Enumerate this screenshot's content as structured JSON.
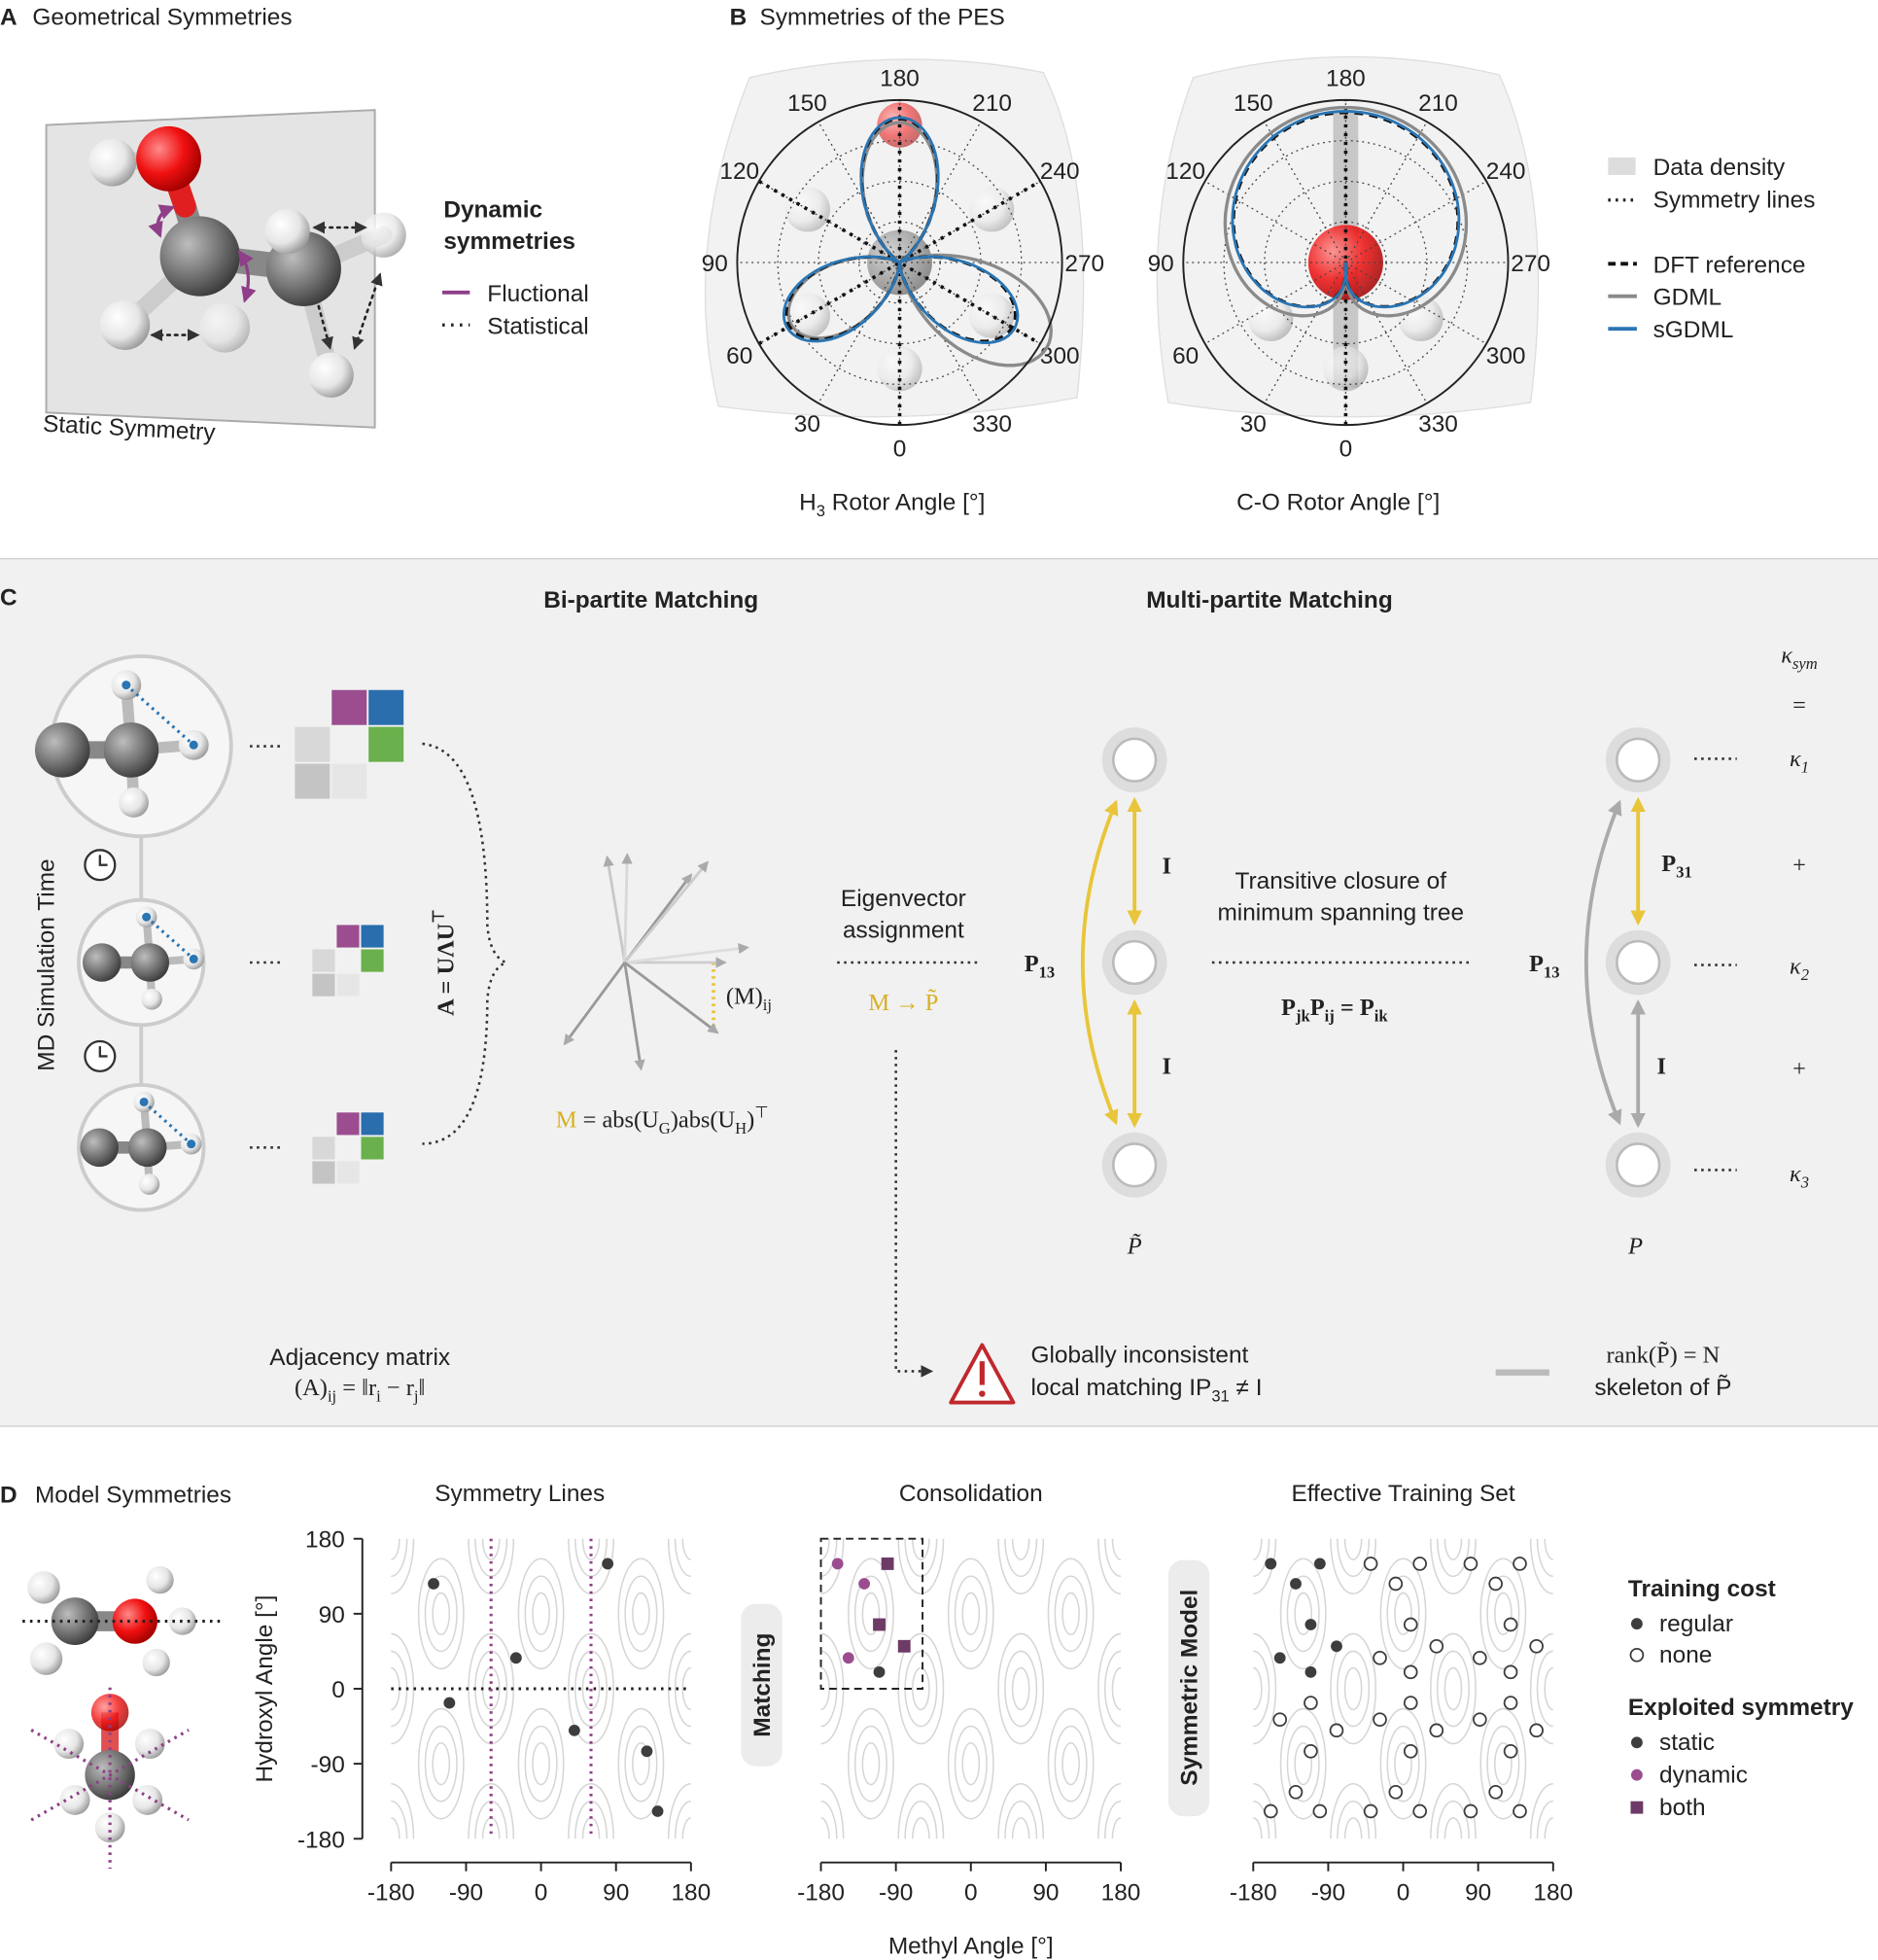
{
  "panel_a": {
    "label": "A",
    "title": "Geometrical Symmetries",
    "legend_title": [
      "Dynamic",
      "symmetries"
    ],
    "legend": [
      "Fluctional",
      "Statistical"
    ],
    "plane_label": "Static Symmetry"
  },
  "panel_b": {
    "label": "B",
    "title": "Symmetries of the PES",
    "angle_ticks": [
      0,
      30,
      60,
      90,
      120,
      150,
      180,
      210,
      240,
      270,
      300,
      330
    ],
    "plots": [
      {
        "xlabel": [
          "H",
          "3",
          " Rotor Angle [°]"
        ],
        "symmetry_angles": [
          0,
          60,
          120
        ]
      },
      {
        "xlabel": [
          "C-O Rotor Angle [°]"
        ],
        "symmetry_angles": [
          0
        ]
      }
    ],
    "legend_extra": [
      "Data density",
      "Symmetry lines"
    ],
    "series": [
      {
        "name": "DFT reference",
        "color": "#111111"
      },
      {
        "name": "GDML",
        "color": "#8a8a8a"
      },
      {
        "name": "sGDML",
        "color": "#2a75b3"
      }
    ]
  },
  "panel_c": {
    "label": "C",
    "bipartite_title": "Bi-partite Matching",
    "multipartite_title": "Multi-partite Matching",
    "time_axis": "MD Simulation Time",
    "spectral": [
      "A = UΛU",
      "⊤"
    ],
    "matrix_entry": [
      "(M)",
      "ij"
    ],
    "m_formula": [
      "M",
      " = abs(U",
      "G",
      ")abs(U",
      "H",
      ")",
      "⊤"
    ],
    "assignment": [
      "Eigenvector",
      "assignment"
    ],
    "assignment_map": "M → P̃",
    "closure": [
      "Transitive closure of",
      "minimum spanning tree"
    ],
    "closure_rule": [
      "P",
      "jk",
      "P",
      "ij",
      " = P",
      "ik"
    ],
    "left_edges": {
      "outer": [
        "P",
        "13"
      ],
      "upper": "I",
      "lower": "I"
    },
    "left_set": "P̃",
    "right_edges": {
      "outer": [
        "P",
        "13"
      ],
      "upper": [
        "P",
        "31"
      ],
      "lower": "I"
    },
    "right_set": "P",
    "kappa": {
      "total": [
        "κ",
        "sym"
      ],
      "equals": "=",
      "terms": [
        [
          "κ",
          "1"
        ],
        [
          "κ",
          "2"
        ],
        [
          "κ",
          "3"
        ]
      ],
      "plus": [
        "+",
        "+"
      ]
    },
    "adjacency": {
      "title": "Adjacency matrix",
      "formula": [
        "(A)",
        "ij",
        " = ‖r",
        "i",
        " − r",
        "j",
        "‖"
      ]
    },
    "warning": {
      "line1": "Globally inconsistent",
      "line2": [
        "local matching ",
        "IP",
        "31",
        " ≠ I"
      ]
    },
    "skeleton": {
      "line1": "rank(P̃) = N",
      "line2": "skeleton of P̃"
    }
  },
  "panel_d": {
    "label": "D",
    "title": "Model Symmetries",
    "ylabel": "Hydroxyl Angle [°]",
    "xlabel": "Methyl Angle [°]",
    "xlim": [
      -180,
      180
    ],
    "ylim": [
      -180,
      180
    ],
    "xticks": [
      -180,
      -90,
      0,
      90,
      180
    ],
    "yticks": [
      -180,
      -90,
      0,
      90,
      180
    ],
    "plots": [
      {
        "title": "Symmetry Lines",
        "symmetry_lines": {
          "x": [
            -60,
            60
          ],
          "y": [
            0
          ]
        },
        "series": [
          {
            "color": "#3d3d3d",
            "marker": "circle",
            "x": [
              -129,
              -30,
              -110,
              80,
              40,
              127,
              140
            ],
            "y": [
              126,
              37,
              -17,
              150,
              -50,
              -75,
              -147
            ]
          }
        ]
      },
      {
        "title": "Consolidation",
        "tag": "Matching",
        "box": {
          "x": [
            -180,
            -58
          ],
          "y": [
            0,
            180
          ]
        },
        "series": [
          {
            "color": "#3d3d3d",
            "marker": "circle",
            "x": [
              -110
            ],
            "y": [
              20
            ]
          },
          {
            "color": "#9b4d8f",
            "marker": "circle",
            "x": [
              -160,
              -128,
              -147
            ],
            "y": [
              150,
              126,
              37
            ]
          },
          {
            "color": "#6e3a66",
            "marker": "square",
            "x": [
              -100,
              -110,
              -80
            ],
            "y": [
              150,
              77,
              51
            ]
          }
        ]
      },
      {
        "title": "Effective Training Set",
        "tag": "Symmetric Model",
        "series": [
          {
            "color": "#3d3d3d",
            "marker": "circle",
            "x": [
              -159,
              -129,
              -100,
              -111,
              -148,
              -111,
              -80
            ],
            "y": [
              150,
              126,
              150,
              77,
              37,
              20,
              51
            ]
          },
          {
            "color": "#3d3d3d",
            "marker": "open",
            "x": [
              -159,
              -129,
              -100,
              -111,
              -148,
              -111,
              -80,
              -39,
              -9,
              20,
              9,
              -28,
              9,
              40,
              -39,
              -9,
              20,
              9,
              -28,
              9,
              40,
              81,
              111,
              140,
              129,
              92,
              129,
              160,
              81,
              111,
              140,
              129,
              92,
              129,
              160
            ],
            "y": [
              -147,
              -124,
              -147,
              -75,
              -37,
              -17,
              -50,
              150,
              126,
              150,
              77,
              37,
              20,
              51,
              -147,
              -124,
              -147,
              -75,
              -37,
              -17,
              -50,
              150,
              126,
              150,
              77,
              37,
              20,
              51,
              -147,
              -124,
              -147,
              -75,
              -37,
              -17,
              -50
            ]
          }
        ]
      }
    ],
    "legend": {
      "training_cost": {
        "title": "Training cost",
        "items": [
          {
            "name": "regular",
            "color": "#3d3d3d",
            "marker": "circle"
          },
          {
            "name": "none",
            "color": "#3d3d3d",
            "marker": "open"
          }
        ]
      },
      "exploited": {
        "title": "Exploited symmetry",
        "items": [
          {
            "name": "static",
            "color": "#3d3d3d",
            "marker": "circle"
          },
          {
            "name": "dynamic",
            "color": "#9b4d8f",
            "marker": "circle"
          },
          {
            "name": "both",
            "color": "#6e3a66",
            "marker": "square"
          }
        ]
      }
    }
  }
}
